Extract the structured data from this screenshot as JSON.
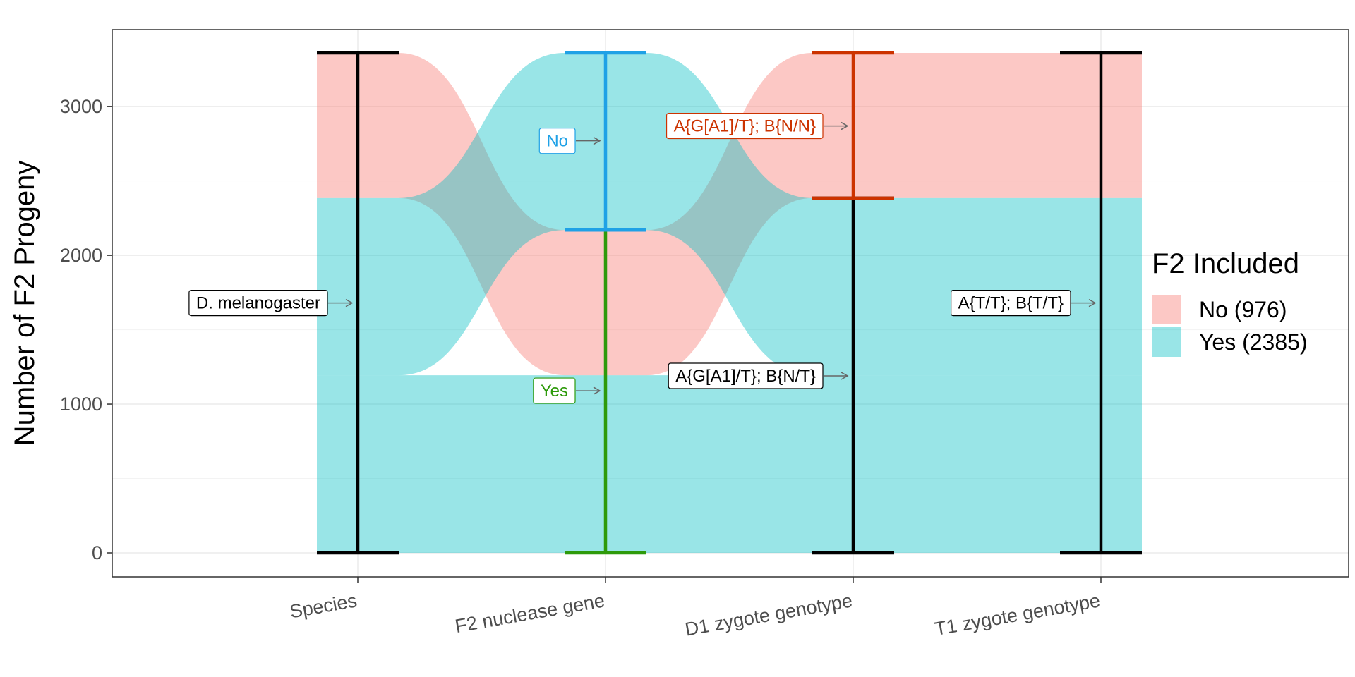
{
  "chart_data": {
    "type": "alluvial",
    "ylabel": "Number of F2 Progeny",
    "ylim": [
      0,
      3361
    ],
    "y_ticks": [
      0,
      1000,
      2000,
      3000
    ],
    "grid": true,
    "axes": [
      "Species",
      "F2 nuclease gene",
      "D1 zygote genotype",
      "T1 zygote genotype"
    ],
    "legend": {
      "title": "F2 Included",
      "position": "right",
      "entries": [
        {
          "label": "No (976)",
          "color": "#f8766d"
        },
        {
          "label": "Yes (2385)",
          "color": "#00bfc4"
        }
      ]
    },
    "strata": [
      {
        "axis": 0,
        "label": "D. melanogaster",
        "ymin": 0,
        "ymax": 3361,
        "color": "#000000"
      },
      {
        "axis": 1,
        "label": "Yes",
        "ymin": 0,
        "ymax": 2170,
        "color": "#2e9a0b"
      },
      {
        "axis": 1,
        "label": "No",
        "ymin": 2170,
        "ymax": 3361,
        "color": "#1fa1e6"
      },
      {
        "axis": 2,
        "label": "A{G[A1]/T}; B{N/T}",
        "ymin": 0,
        "ymax": 2385,
        "color": "#000000"
      },
      {
        "axis": 2,
        "label": "A{G[A1]/T}; B{N/N}",
        "ymin": 2385,
        "ymax": 3361,
        "color": "#cc3300"
      },
      {
        "axis": 3,
        "label": "A{T/T}; B{T/T}",
        "ymin": 0,
        "ymax": 3361,
        "color": "#000000"
      }
    ],
    "flows": [
      {
        "group": "Yes",
        "count": 1194,
        "path": [
          "D. melanogaster",
          "Yes",
          "A{G[A1]/T}; B{N/T}",
          "A{T/T}; B{T/T}"
        ]
      },
      {
        "group": "No",
        "count": 976,
        "path": [
          "D. melanogaster",
          "Yes",
          "A{G[A1]/T}; B{N/N}",
          "A{T/T}; B{T/T}"
        ]
      },
      {
        "group": "Yes",
        "count": 1191,
        "path": [
          "D. melanogaster",
          "No",
          "A{G[A1]/T}; B{N/T}",
          "A{T/T}; B{T/T}"
        ]
      }
    ]
  }
}
